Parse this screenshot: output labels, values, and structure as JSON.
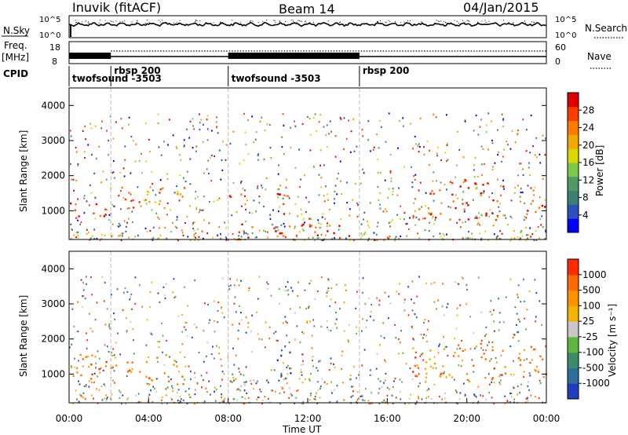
{
  "header": {
    "station": "Inuvik (fitACF)",
    "beam": "Beam 14",
    "date": "04/Jan/2015"
  },
  "nsky": {
    "left_label": "N.Sky",
    "left_ticks": [
      "10^5",
      "10^0"
    ],
    "right_ticks": [
      "10^5",
      "10^0"
    ],
    "right_label": "N.Search"
  },
  "freq": {
    "left_label_1": "Freq.",
    "left_label_2": "[MHz]",
    "left_ticks": [
      "18",
      "8"
    ],
    "right_ticks": [
      "60",
      "0"
    ],
    "right_label": "Nave"
  },
  "cpid": {
    "label": "CPID",
    "segments": [
      {
        "start_hr": 0.0,
        "name": "twofsound -3503",
        "row": 2
      },
      {
        "start_hr": 2.1,
        "name": "rbsp 200",
        "row": 1
      },
      {
        "start_hr": 8.0,
        "name": "twofsound -3503",
        "row": 2
      },
      {
        "start_hr": 14.6,
        "name": "rbsp 200",
        "row": 1
      }
    ]
  },
  "chart_data": [
    {
      "type": "heatmap",
      "name": "power",
      "ylabel": "Slant Range [km]",
      "xlim": [
        0,
        24
      ],
      "ylim": [
        180,
        4500
      ],
      "yticks": [
        "1000",
        "2000",
        "3000",
        "4000"
      ],
      "yticks_values": [
        1000,
        2000,
        3000,
        4000
      ],
      "colorbar": {
        "label": "Power [dB]",
        "ticks": [
          "4",
          "8",
          "12",
          "16",
          "20",
          "24",
          "28"
        ],
        "colors": [
          "#0000ff",
          "#2a52be",
          "#3c7f78",
          "#4f9a62",
          "#7cc84a",
          "#d8d800",
          "#f2a800",
          "#ff7a00",
          "#ff3c00",
          "#e00000"
        ]
      },
      "features": [
        {
          "t0": 0.0,
          "t1": 2.0,
          "r0": 700,
          "r1": 1300,
          "level": 0.9
        },
        {
          "t0": 2.0,
          "t1": 5.8,
          "r0": 950,
          "r1": 1700,
          "level": 0.7
        },
        {
          "t0": 8.0,
          "t1": 8.8,
          "r0": 1100,
          "r1": 1600,
          "level": 0.8
        },
        {
          "t0": 8.5,
          "t1": 14.5,
          "r0": 200,
          "r1": 650,
          "level": 0.85
        },
        {
          "t0": 10.3,
          "t1": 11.2,
          "r0": 900,
          "r1": 1900,
          "level": 0.9
        },
        {
          "t0": 17.2,
          "t1": 22.0,
          "r0": 750,
          "r1": 1900,
          "level": 0.9
        },
        {
          "t0": 23.0,
          "t1": 24.0,
          "r0": 1000,
          "r1": 1600,
          "level": 0.85
        }
      ]
    },
    {
      "type": "heatmap",
      "name": "velocity",
      "ylabel": "Slant Range [km]",
      "xlabel": "Time UT",
      "xlim": [
        0,
        24
      ],
      "ylim": [
        180,
        4500
      ],
      "xticks": [
        "00:00",
        "04:00",
        "08:00",
        "12:00",
        "16:00",
        "20:00",
        "00:00"
      ],
      "xticks_values": [
        0,
        4,
        8,
        12,
        16,
        20,
        24
      ],
      "yticks": [
        "1000",
        "2000",
        "3000",
        "4000"
      ],
      "yticks_values": [
        1000,
        2000,
        3000,
        4000
      ],
      "colorbar": {
        "label": "Velocity [m s⁻¹]",
        "ticks": [
          "1000",
          "500",
          "100",
          "25",
          "-25",
          "-100",
          "-500",
          "-1000"
        ],
        "colors": [
          "#1f3fbf",
          "#2f6fa0",
          "#3f8a6a",
          "#5fb83c",
          "#c8c8c8",
          "#f2b400",
          "#ff9000",
          "#ff6a00",
          "#ff2a00"
        ]
      },
      "features": [
        {
          "t0": 0.0,
          "t1": 5.8,
          "r0": 700,
          "r1": 1600,
          "level": 0.75
        },
        {
          "t0": 8.0,
          "t1": 10.0,
          "r0": 200,
          "r1": 900,
          "level": 0.45
        },
        {
          "t0": 10.3,
          "t1": 11.2,
          "r0": 900,
          "r1": 1900,
          "level": 0.05
        },
        {
          "t0": 17.2,
          "t1": 24.0,
          "r0": 800,
          "r1": 1900,
          "level": 0.75
        }
      ]
    }
  ]
}
